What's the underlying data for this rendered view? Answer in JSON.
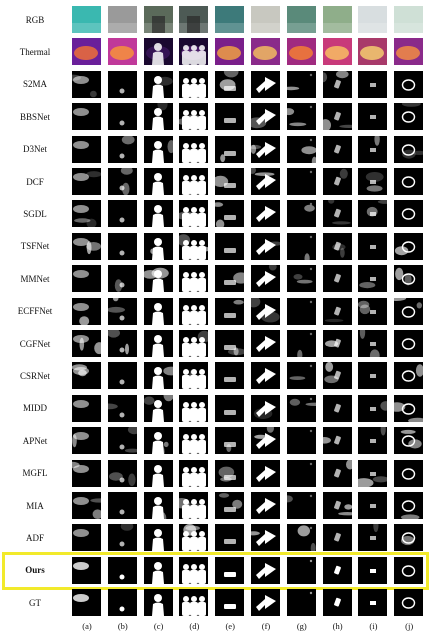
{
  "figure": {
    "rows": [
      {
        "label": "RGB",
        "kind": "rgb"
      },
      {
        "label": "Thermal",
        "kind": "thermal"
      },
      {
        "label": "S2MA",
        "kind": "map"
      },
      {
        "label": "BBSNet",
        "kind": "map"
      },
      {
        "label": "D3Net",
        "kind": "map"
      },
      {
        "label": "DCF",
        "kind": "map"
      },
      {
        "label": "SGDL",
        "kind": "map"
      },
      {
        "label": "TSFNet",
        "kind": "map"
      },
      {
        "label": "MMNet",
        "kind": "map"
      },
      {
        "label": "ECFFNet",
        "kind": "map"
      },
      {
        "label": "CGFNet",
        "kind": "map"
      },
      {
        "label": "CSRNet",
        "kind": "map"
      },
      {
        "label": "MIDD",
        "kind": "map"
      },
      {
        "label": "APNet",
        "kind": "map"
      },
      {
        "label": "MGFL",
        "kind": "map"
      },
      {
        "label": "MIA",
        "kind": "map"
      },
      {
        "label": "ADF",
        "kind": "map"
      },
      {
        "label": "Ours",
        "kind": "map",
        "highlighted": true
      },
      {
        "label": "GT",
        "kind": "map"
      }
    ],
    "columns": [
      "(a)",
      "(b)",
      "(c)",
      "(d)",
      "(e)",
      "(f)",
      "(g)",
      "(h)",
      "(i)",
      "(j)"
    ],
    "highlight_color": "#f2ea2a"
  }
}
